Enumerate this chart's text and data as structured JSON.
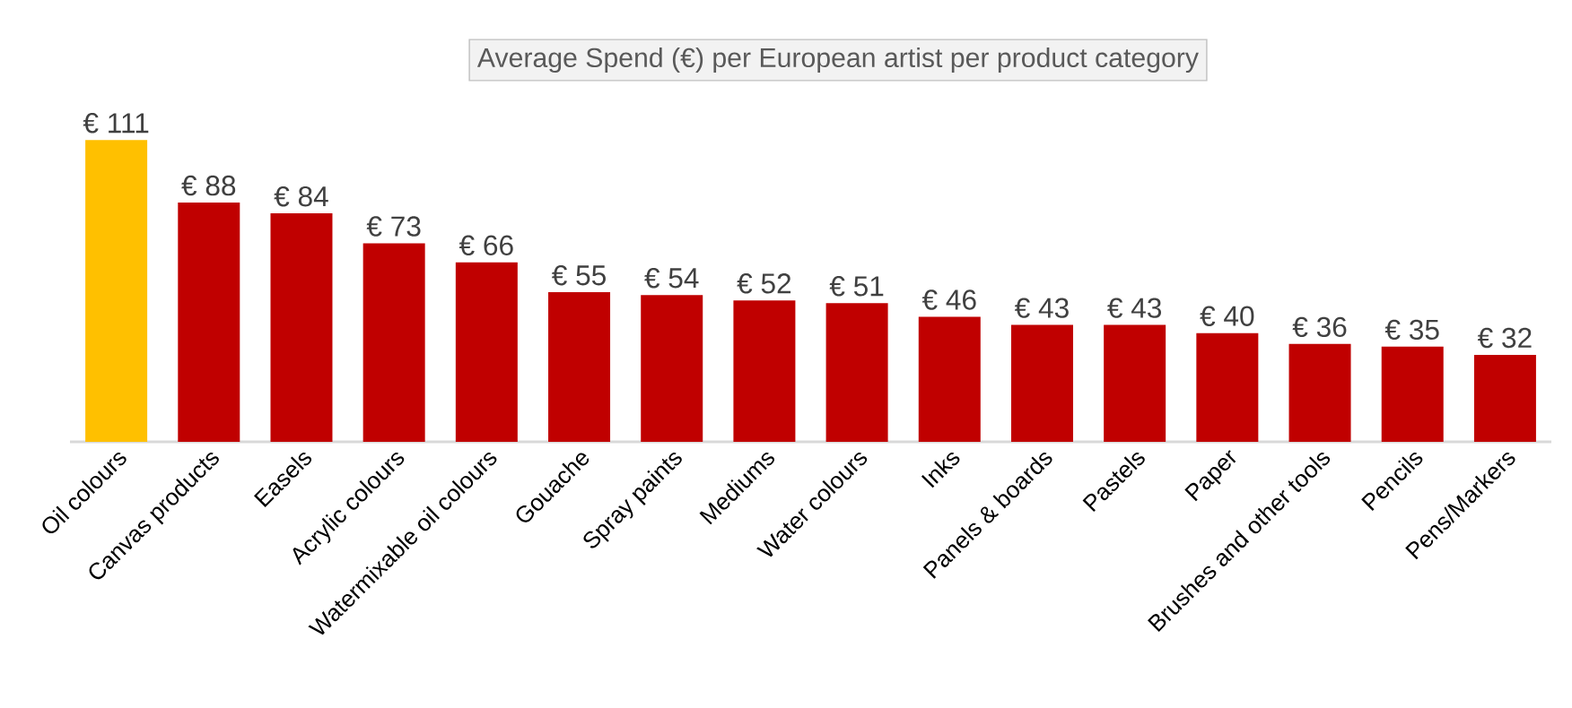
{
  "chart_data": {
    "type": "bar",
    "title": "Average Spend (€) per European artist per product category",
    "categories": [
      "Oil colours",
      "Canvas products",
      "Easels",
      "Acrylic colours",
      "Watermixable oil colours",
      "Gouache",
      "Spray paints",
      "Mediums",
      "Water colours",
      "Inks",
      "Panels & boards",
      "Pastels",
      "Paper",
      "Brushes and other tools",
      "Pencils",
      "Pens/Markers"
    ],
    "values": [
      111,
      88,
      84,
      73,
      66,
      55,
      54,
      52,
      51,
      46,
      43,
      43,
      40,
      36,
      35,
      32
    ],
    "value_labels": [
      "€ 111",
      "€ 88",
      "€ 84",
      "€ 73",
      "€ 66",
      "€ 55",
      "€ 54",
      "€ 52",
      "€ 51",
      "€ 46",
      "€ 43",
      "€ 43",
      "€ 40",
      "€ 36",
      "€ 35",
      "€ 32"
    ],
    "colors": [
      "#ffc000",
      "#c00000",
      "#c00000",
      "#c00000",
      "#c00000",
      "#c00000",
      "#c00000",
      "#c00000",
      "#c00000",
      "#c00000",
      "#c00000",
      "#c00000",
      "#c00000",
      "#c00000",
      "#c00000",
      "#c00000"
    ]
  }
}
